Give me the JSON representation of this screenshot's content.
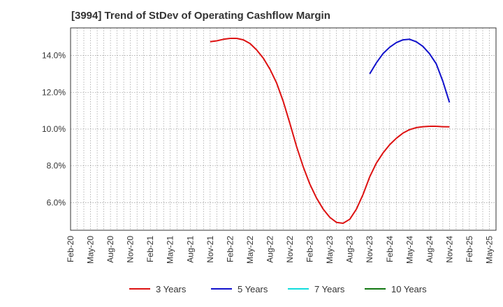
{
  "chart_data": {
    "type": "line",
    "title": "[3994]  Trend of StDev of Operating Cashflow Margin",
    "xlabel": "",
    "ylabel": "",
    "x_ticks": [
      "Feb-20",
      "May-20",
      "Aug-20",
      "Nov-20",
      "Feb-21",
      "May-21",
      "Aug-21",
      "Nov-21",
      "Feb-22",
      "May-22",
      "Aug-22",
      "Nov-22",
      "Feb-23",
      "May-23",
      "Aug-23",
      "Nov-23",
      "Feb-24",
      "May-24",
      "Aug-24",
      "Nov-24",
      "Feb-25",
      "May-25"
    ],
    "y_ticks": [
      "6.0%",
      "8.0%",
      "10.0%",
      "12.0%",
      "14.0%"
    ],
    "y_tick_values": [
      6,
      8,
      10,
      12,
      14
    ],
    "ylim": [
      4.5,
      15.5
    ],
    "grid": true,
    "legend_position": "bottom",
    "series": [
      {
        "name": "3 Years",
        "color": "#dd1111",
        "points": [
          [
            "Nov-21",
            14.75
          ],
          [
            "Dec-21",
            14.8
          ],
          [
            "Jan-22",
            14.88
          ],
          [
            "Feb-22",
            14.93
          ],
          [
            "Mar-22",
            14.93
          ],
          [
            "Apr-22",
            14.85
          ],
          [
            "May-22",
            14.65
          ],
          [
            "Jun-22",
            14.3
          ],
          [
            "Jul-22",
            13.85
          ],
          [
            "Aug-22",
            13.25
          ],
          [
            "Sep-22",
            12.5
          ],
          [
            "Oct-22",
            11.5
          ],
          [
            "Nov-22",
            10.3
          ],
          [
            "Dec-22",
            9.05
          ],
          [
            "Jan-23",
            7.95
          ],
          [
            "Feb-23",
            7.0
          ],
          [
            "Mar-23",
            6.25
          ],
          [
            "Apr-23",
            5.65
          ],
          [
            "May-23",
            5.2
          ],
          [
            "Jun-23",
            4.93
          ],
          [
            "Jul-23",
            4.88
          ],
          [
            "Aug-23",
            5.1
          ],
          [
            "Sep-23",
            5.65
          ],
          [
            "Oct-23",
            6.45
          ],
          [
            "Nov-23",
            7.4
          ],
          [
            "Dec-23",
            8.15
          ],
          [
            "Jan-24",
            8.7
          ],
          [
            "Feb-24",
            9.15
          ],
          [
            "Mar-24",
            9.5
          ],
          [
            "Apr-24",
            9.78
          ],
          [
            "May-24",
            9.97
          ],
          [
            "Jun-24",
            10.08
          ],
          [
            "Jul-24",
            10.13
          ],
          [
            "Aug-24",
            10.15
          ],
          [
            "Sep-24",
            10.15
          ],
          [
            "Oct-24",
            10.13
          ],
          [
            "Nov-24",
            10.12
          ]
        ]
      },
      {
        "name": "5 Years",
        "color": "#1111cc",
        "points": [
          [
            "Nov-23",
            13.0
          ],
          [
            "Dec-23",
            13.6
          ],
          [
            "Jan-24",
            14.1
          ],
          [
            "Feb-24",
            14.45
          ],
          [
            "Mar-24",
            14.7
          ],
          [
            "Apr-24",
            14.85
          ],
          [
            "May-24",
            14.88
          ],
          [
            "Jun-24",
            14.75
          ],
          [
            "Jul-24",
            14.5
          ],
          [
            "Aug-24",
            14.1
          ],
          [
            "Sep-24",
            13.55
          ],
          [
            "Oct-24",
            12.6
          ],
          [
            "Nov-24",
            11.45
          ]
        ]
      },
      {
        "name": "7 Years",
        "color": "#11dddd",
        "points": []
      },
      {
        "name": "10 Years",
        "color": "#117711",
        "points": []
      }
    ]
  }
}
